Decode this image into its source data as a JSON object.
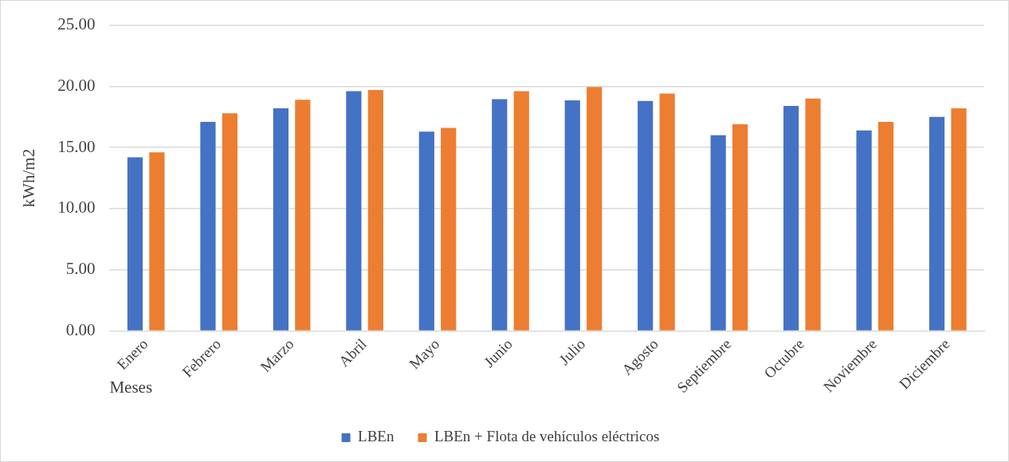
{
  "chart_data": {
    "type": "bar",
    "xlabel": "Meses",
    "ylabel": "kWh/m2",
    "categories": [
      "Enero",
      "Febrero",
      "Marzo",
      "Abril",
      "Mayo",
      "Junio",
      "Julio",
      "Agosto",
      "Septiembre",
      "Octubre",
      "Noviembre",
      "Diciembre"
    ],
    "series": [
      {
        "name": "LBEn",
        "color": "#4472c4",
        "values": [
          14.2,
          17.1,
          18.2,
          19.6,
          16.3,
          18.95,
          18.85,
          18.8,
          16.0,
          18.4,
          16.4,
          17.5
        ]
      },
      {
        "name": "LBEn + Flota de vehículos eléctricos",
        "color": "#ed7d31",
        "values": [
          14.6,
          17.8,
          18.9,
          19.7,
          16.6,
          19.6,
          19.95,
          19.4,
          16.9,
          19.0,
          17.1,
          18.2
        ]
      }
    ],
    "ylim": [
      0,
      25
    ],
    "yticks": [
      {
        "value": 0,
        "label": "0.00"
      },
      {
        "value": 5,
        "label": "5.00"
      },
      {
        "value": 10,
        "label": "10.00"
      },
      {
        "value": 15,
        "label": "15.00"
      },
      {
        "value": 20,
        "label": "20.00"
      },
      {
        "value": 25,
        "label": "25.00"
      }
    ],
    "grid": "y",
    "legend": "bottom"
  }
}
